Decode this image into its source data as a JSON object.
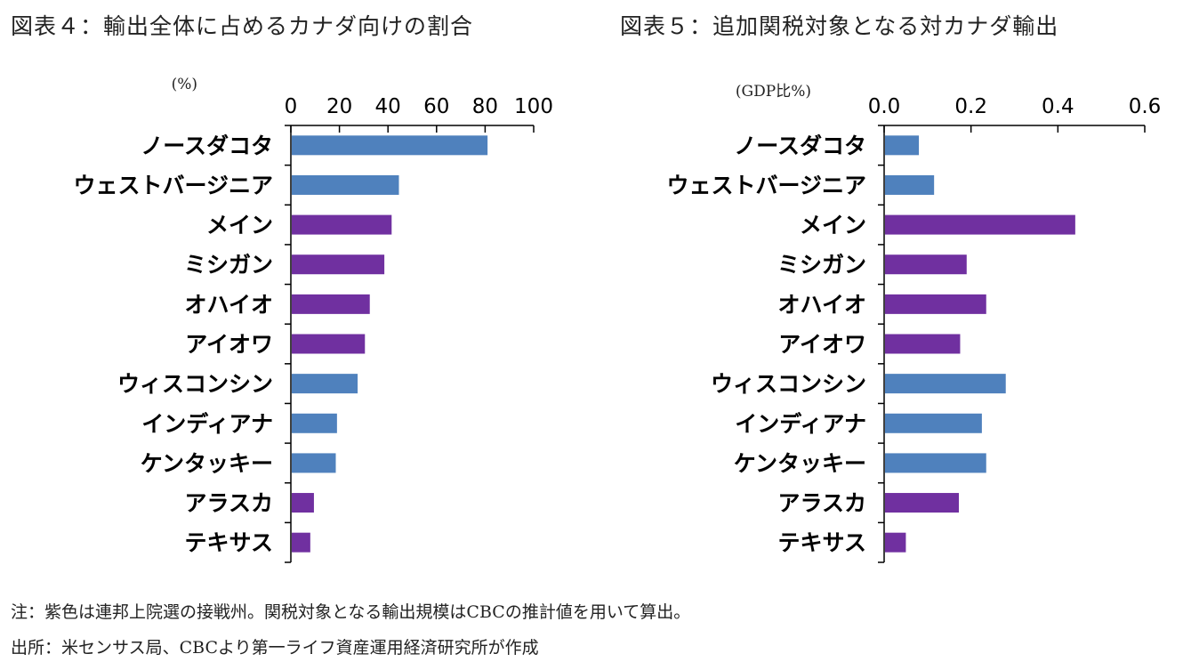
{
  "titles": {
    "left": "図表４：輸出全体に占めるカナダ向けの割合",
    "right": "図表５：追加関税対象となる対カナダ輸出"
  },
  "notes": {
    "note": "注：紫色は連邦上院選の接戦州。関税対象となる輸出規模はCBCの推計値を用いて算出。",
    "source": "出所：米センサス局、CBCより第一ライフ資産運用経済研究所が作成"
  },
  "colors": {
    "blue": "#4f81bd",
    "purple": "#7030a0"
  },
  "chart_data": [
    {
      "type": "bar",
      "orientation": "horizontal",
      "title": "図表４：輸出全体に占めるカナダ向けの割合",
      "unit": "(%)",
      "xlim": [
        0,
        100
      ],
      "ticks": [
        "0",
        "20",
        "40",
        "60",
        "80",
        "100"
      ],
      "tick_values": [
        0,
        20,
        40,
        60,
        80,
        100
      ],
      "categories": [
        "ノースダコタ",
        "ウェストバージニア",
        "メイン",
        "ミシガン",
        "オハイオ",
        "アイオワ",
        "ウィスコンシン",
        "インディアナ",
        "ケンタッキー",
        "アラスカ",
        "テキサス"
      ],
      "values": [
        81,
        44.5,
        41.5,
        38.5,
        32.5,
        30.5,
        27.5,
        19,
        18.5,
        9.5,
        8
      ],
      "bar_colors": [
        "blue",
        "blue",
        "purple",
        "purple",
        "purple",
        "purple",
        "blue",
        "blue",
        "blue",
        "purple",
        "purple"
      ]
    },
    {
      "type": "bar",
      "orientation": "horizontal",
      "title": "図表５：追加関税対象となる対カナダ輸出",
      "unit": "(GDP比%)",
      "xlim": [
        0,
        0.6
      ],
      "ticks": [
        "0.0",
        "0.2",
        "0.4",
        "0.6"
      ],
      "tick_values": [
        0,
        0.2,
        0.4,
        0.6
      ],
      "categories": [
        "ノースダコタ",
        "ウェストバージニア",
        "メイン",
        "ミシガン",
        "オハイオ",
        "アイオワ",
        "ウィスコンシン",
        "インディアナ",
        "ケンタッキー",
        "アラスカ",
        "テキサス"
      ],
      "values": [
        0.08,
        0.115,
        0.44,
        0.19,
        0.235,
        0.175,
        0.28,
        0.225,
        0.235,
        0.172,
        0.05
      ],
      "bar_colors": [
        "blue",
        "blue",
        "purple",
        "purple",
        "purple",
        "purple",
        "blue",
        "blue",
        "blue",
        "purple",
        "purple"
      ]
    }
  ]
}
